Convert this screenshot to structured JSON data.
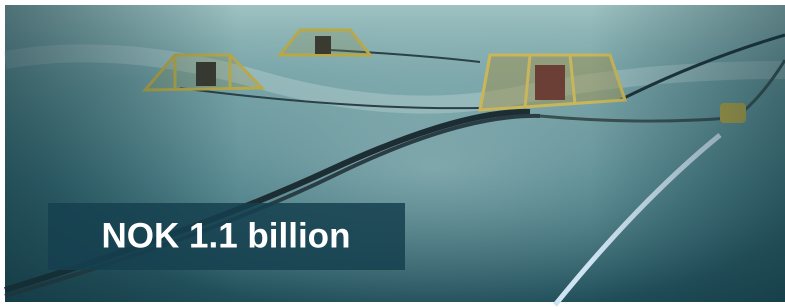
{
  "banner": {
    "text": "NOK 1.1 billion"
  }
}
